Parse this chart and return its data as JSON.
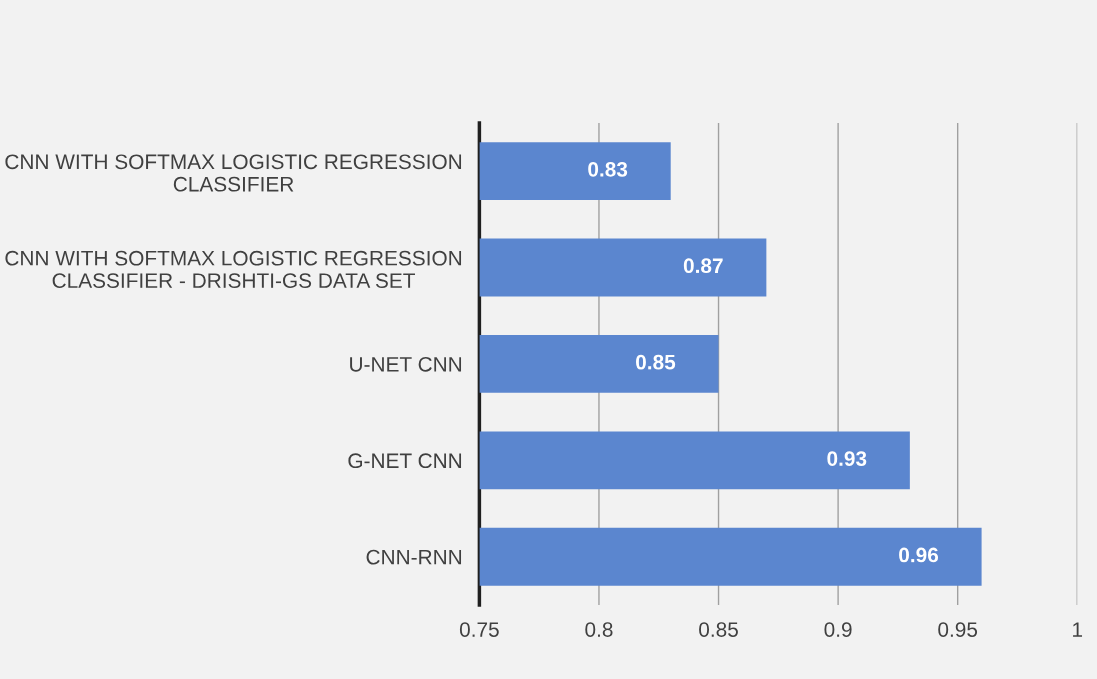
{
  "chart_data": {
    "type": "bar",
    "orientation": "horizontal",
    "categories": [
      "CNN WITH SOFTMAX LOGISTIC REGRESSION\nCLASSIFIER",
      "CNN WITH SOFTMAX LOGISTIC REGRESSION\nCLASSIFIER - DRISHTI-GS DATA SET",
      "U-NET CNN",
      "G-NET CNN",
      "CNN-RNN"
    ],
    "values": [
      0.83,
      0.87,
      0.85,
      0.93,
      0.96
    ],
    "color": "#5b86cf",
    "xlim": [
      0.75,
      1
    ],
    "xticks": [
      0.75,
      0.8,
      0.85,
      0.9,
      0.95,
      1
    ],
    "grid": "x",
    "data_labels": true
  }
}
